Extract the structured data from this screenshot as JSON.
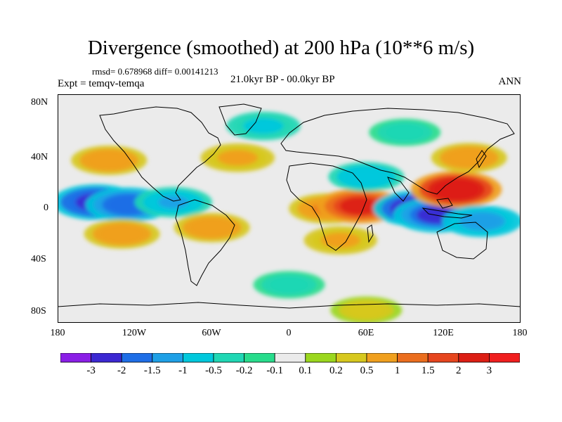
{
  "title": "Divergence (smoothed) at 200 hPa (10**6 m/s)",
  "stats": "rmsd= 0.678968 diff= 0.00141213",
  "experiment": "Expt = temqv-temqa",
  "period": "21.0kyr BP - 00.0kyr BP",
  "season": "ANN",
  "lat_ticks": [
    "80N",
    "40N",
    "0",
    "40S",
    "80S"
  ],
  "lon_ticks": [
    "180",
    "120W",
    "60W",
    "0",
    "60E",
    "120E",
    "180"
  ],
  "colorbar": {
    "labels": [
      "-3",
      "-2",
      "-1.5",
      "-1",
      "-0.5",
      "-0.2",
      "-0.1",
      "0.1",
      "0.2",
      "0.5",
      "1",
      "1.5",
      "2",
      "3"
    ],
    "colors": [
      "#8a1ee6",
      "#3c28d2",
      "#1e6ee6",
      "#1ea0e6",
      "#00c8dc",
      "#20d7b4",
      "#28dc8c",
      "#ebebeb",
      "#9bd71e",
      "#d7c81e",
      "#f0a01e",
      "#eb6e1e",
      "#e6461e",
      "#dc1e14",
      "#f01e1e"
    ]
  },
  "chart_data": {
    "type": "heatmap",
    "title": "Divergence (smoothed) at 200 hPa (10**6 m/s)",
    "variable": "divergence difference (10**6 m/s)",
    "levels": [
      -3,
      -2,
      -1.5,
      -1,
      -0.5,
      -0.2,
      -0.1,
      0.1,
      0.2,
      0.5,
      1,
      1.5,
      2,
      3
    ],
    "lon_range": [
      -180,
      180
    ],
    "lat_range": [
      -90,
      90
    ],
    "cells": [
      {
        "lon": -150,
        "lat": 5,
        "value": -2.5
      },
      {
        "lon": -125,
        "lat": 3,
        "value": -2.2
      },
      {
        "lon": -90,
        "lat": 5,
        "value": -1.2
      },
      {
        "lon": -60,
        "lat": -15,
        "value": 1.0
      },
      {
        "lon": -130,
        "lat": -20,
        "value": 1.0
      },
      {
        "lon": -140,
        "lat": 38,
        "value": 1.0
      },
      {
        "lon": -40,
        "lat": 40,
        "value": 0.8
      },
      {
        "lon": 30,
        "lat": 0,
        "value": 1.2
      },
      {
        "lon": 55,
        "lat": 2,
        "value": 2.3
      },
      {
        "lon": 100,
        "lat": 0,
        "value": -2.6
      },
      {
        "lon": 115,
        "lat": -5,
        "value": -2.4
      },
      {
        "lon": 130,
        "lat": 15,
        "value": 2.8
      },
      {
        "lon": 150,
        "lat": -10,
        "value": -1.5
      },
      {
        "lon": 60,
        "lat": 25,
        "value": -1.0
      },
      {
        "lon": -20,
        "lat": 65,
        "value": -0.8
      },
      {
        "lon": 90,
        "lat": 60,
        "value": -0.5
      },
      {
        "lon": 140,
        "lat": 40,
        "value": 1.0
      },
      {
        "lon": 40,
        "lat": -25,
        "value": 0.7
      },
      {
        "lon": 0,
        "lat": -60,
        "value": -0.5
      },
      {
        "lon": 60,
        "lat": -80,
        "value": 0.5
      }
    ]
  }
}
